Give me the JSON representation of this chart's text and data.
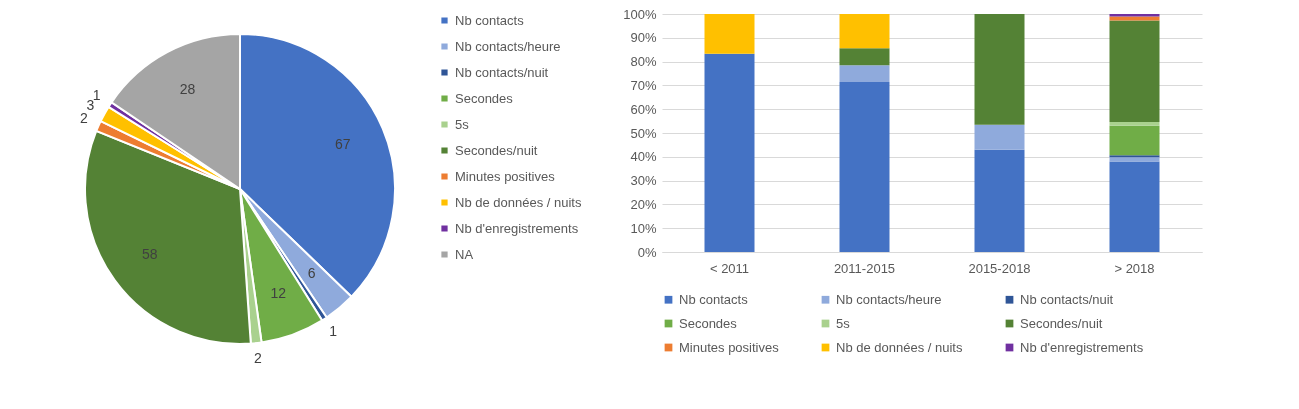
{
  "chart_data": [
    {
      "type": "pie",
      "categories": [
        "Nb contacts",
        "Nb contacts/heure",
        "Nb contacts/nuit",
        "Secondes",
        "5s",
        "Secondes/nuit",
        "Minutes positives",
        "Nb de données / nuits",
        "Nb d'enregistrements",
        "NA"
      ],
      "values": [
        67,
        6,
        1,
        12,
        2,
        58,
        2,
        3,
        1,
        28
      ],
      "colors": [
        "#4472c4",
        "#8faadc",
        "#2f5597",
        "#70ad47",
        "#a9d18e",
        "#548235",
        "#ed7d31",
        "#ffc000",
        "#7030a0",
        "#a5a5a5"
      ],
      "data_labels": true,
      "legend": "right"
    },
    {
      "type": "bar",
      "stacked": true,
      "categories": [
        "< 2011",
        "2011-2015",
        "2015-2018",
        "> 2018"
      ],
      "series": [
        {
          "name": "Nb contacts",
          "color": "#4472c4",
          "values": [
            83.3,
            71.4,
            43.0,
            38.0
          ]
        },
        {
          "name": "Nb contacts/heure",
          "color": "#8faadc",
          "values": [
            null,
            7.1,
            10.5,
            1.8
          ]
        },
        {
          "name": "Nb contacts/nuit",
          "color": "#2f5597",
          "values": [
            null,
            null,
            null,
            0.9
          ]
        },
        {
          "name": "Secondes",
          "color": "#70ad47",
          "values": [
            null,
            null,
            null,
            12.3
          ]
        },
        {
          "name": "5s",
          "color": "#a9d18e",
          "values": [
            null,
            null,
            null,
            1.6
          ]
        },
        {
          "name": "Secondes/nuit",
          "color": "#548235",
          "values": [
            null,
            7.1,
            46.5,
            42.7
          ]
        },
        {
          "name": "Minutes positives",
          "color": "#ed7d31",
          "values": [
            null,
            null,
            null,
            1.6
          ]
        },
        {
          "name": "Nb de données / nuits",
          "color": "#ffc000",
          "values": [
            16.7,
            14.4,
            null,
            null
          ]
        },
        {
          "name": "Nb d'enregistrements",
          "color": "#7030a0",
          "values": [
            null,
            null,
            null,
            1.1
          ]
        }
      ],
      "ylim": [
        0,
        100
      ],
      "yticks": [
        {
          "value": 0,
          "label": "0%"
        },
        {
          "value": 10,
          "label": "10%"
        },
        {
          "value": 20,
          "label": "20%"
        },
        {
          "value": 30,
          "label": "30%"
        },
        {
          "value": 40,
          "label": "40%"
        },
        {
          "value": 50,
          "label": "50%"
        },
        {
          "value": 60,
          "label": "60%"
        },
        {
          "value": 70,
          "label": "70%"
        },
        {
          "value": 80,
          "label": "80%"
        },
        {
          "value": 90,
          "label": "90%"
        },
        {
          "value": 100,
          "label": "100%"
        }
      ],
      "grid": "y",
      "legend": "bottom"
    }
  ]
}
